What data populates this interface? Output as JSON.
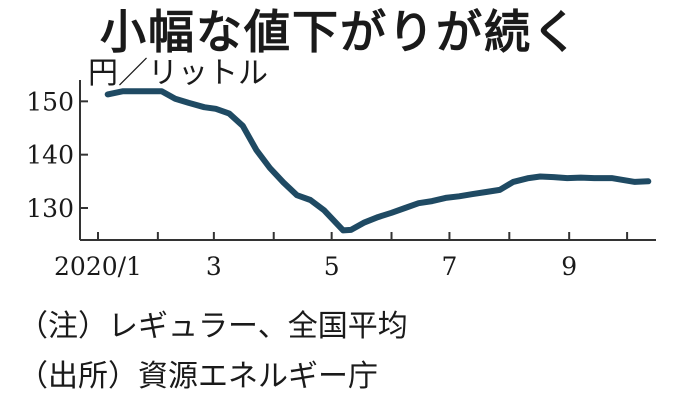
{
  "chart_data": {
    "type": "line",
    "title": "小幅な値下がりが続く",
    "ylabel": "円／リットル",
    "xlabel": "",
    "ylim": [
      124,
      154
    ],
    "x_tick_labels": [
      "2020/1",
      "3",
      "5",
      "7",
      "9"
    ],
    "y_ticks": [
      130,
      140,
      150
    ],
    "grid": false,
    "series_color": "#1f4a63",
    "x": [
      "2020/1/6",
      "2020/1/14",
      "2020/1/20",
      "2020/1/27",
      "2020/2/3",
      "2020/2/10",
      "2020/2/17",
      "2020/2/25",
      "2020/3/2",
      "2020/3/9",
      "2020/3/16",
      "2020/3/23",
      "2020/3/30",
      "2020/4/6",
      "2020/4/13",
      "2020/4/20",
      "2020/4/27",
      "2020/5/7",
      "2020/5/11",
      "2020/5/18",
      "2020/5/25",
      "2020/6/1",
      "2020/6/8",
      "2020/6/15",
      "2020/6/22",
      "2020/6/29",
      "2020/7/6",
      "2020/7/13",
      "2020/7/20",
      "2020/7/27",
      "2020/8/3",
      "2020/8/11",
      "2020/8/17",
      "2020/8/24",
      "2020/8/31",
      "2020/9/7",
      "2020/9/14",
      "2020/9/23",
      "2020/9/28",
      "2020/10/5",
      "2020/10/12"
    ],
    "values": [
      151.3,
      151.9,
      151.9,
      151.9,
      151.9,
      150.5,
      149.7,
      148.9,
      148.6,
      147.7,
      145.4,
      140.9,
      137.5,
      134.8,
      132.4,
      131.5,
      129.6,
      125.8,
      125.9,
      127.3,
      128.3,
      129.1,
      130.0,
      130.9,
      131.3,
      131.9,
      132.2,
      132.6,
      133.0,
      133.4,
      134.9,
      135.6,
      135.9,
      135.8,
      135.6,
      135.7,
      135.6,
      135.6,
      135.3,
      134.9,
      135.0
    ]
  },
  "notes": {
    "line1": "（注）レギュラー、全国平均",
    "line2": "（出所）資源エネルギー庁"
  }
}
